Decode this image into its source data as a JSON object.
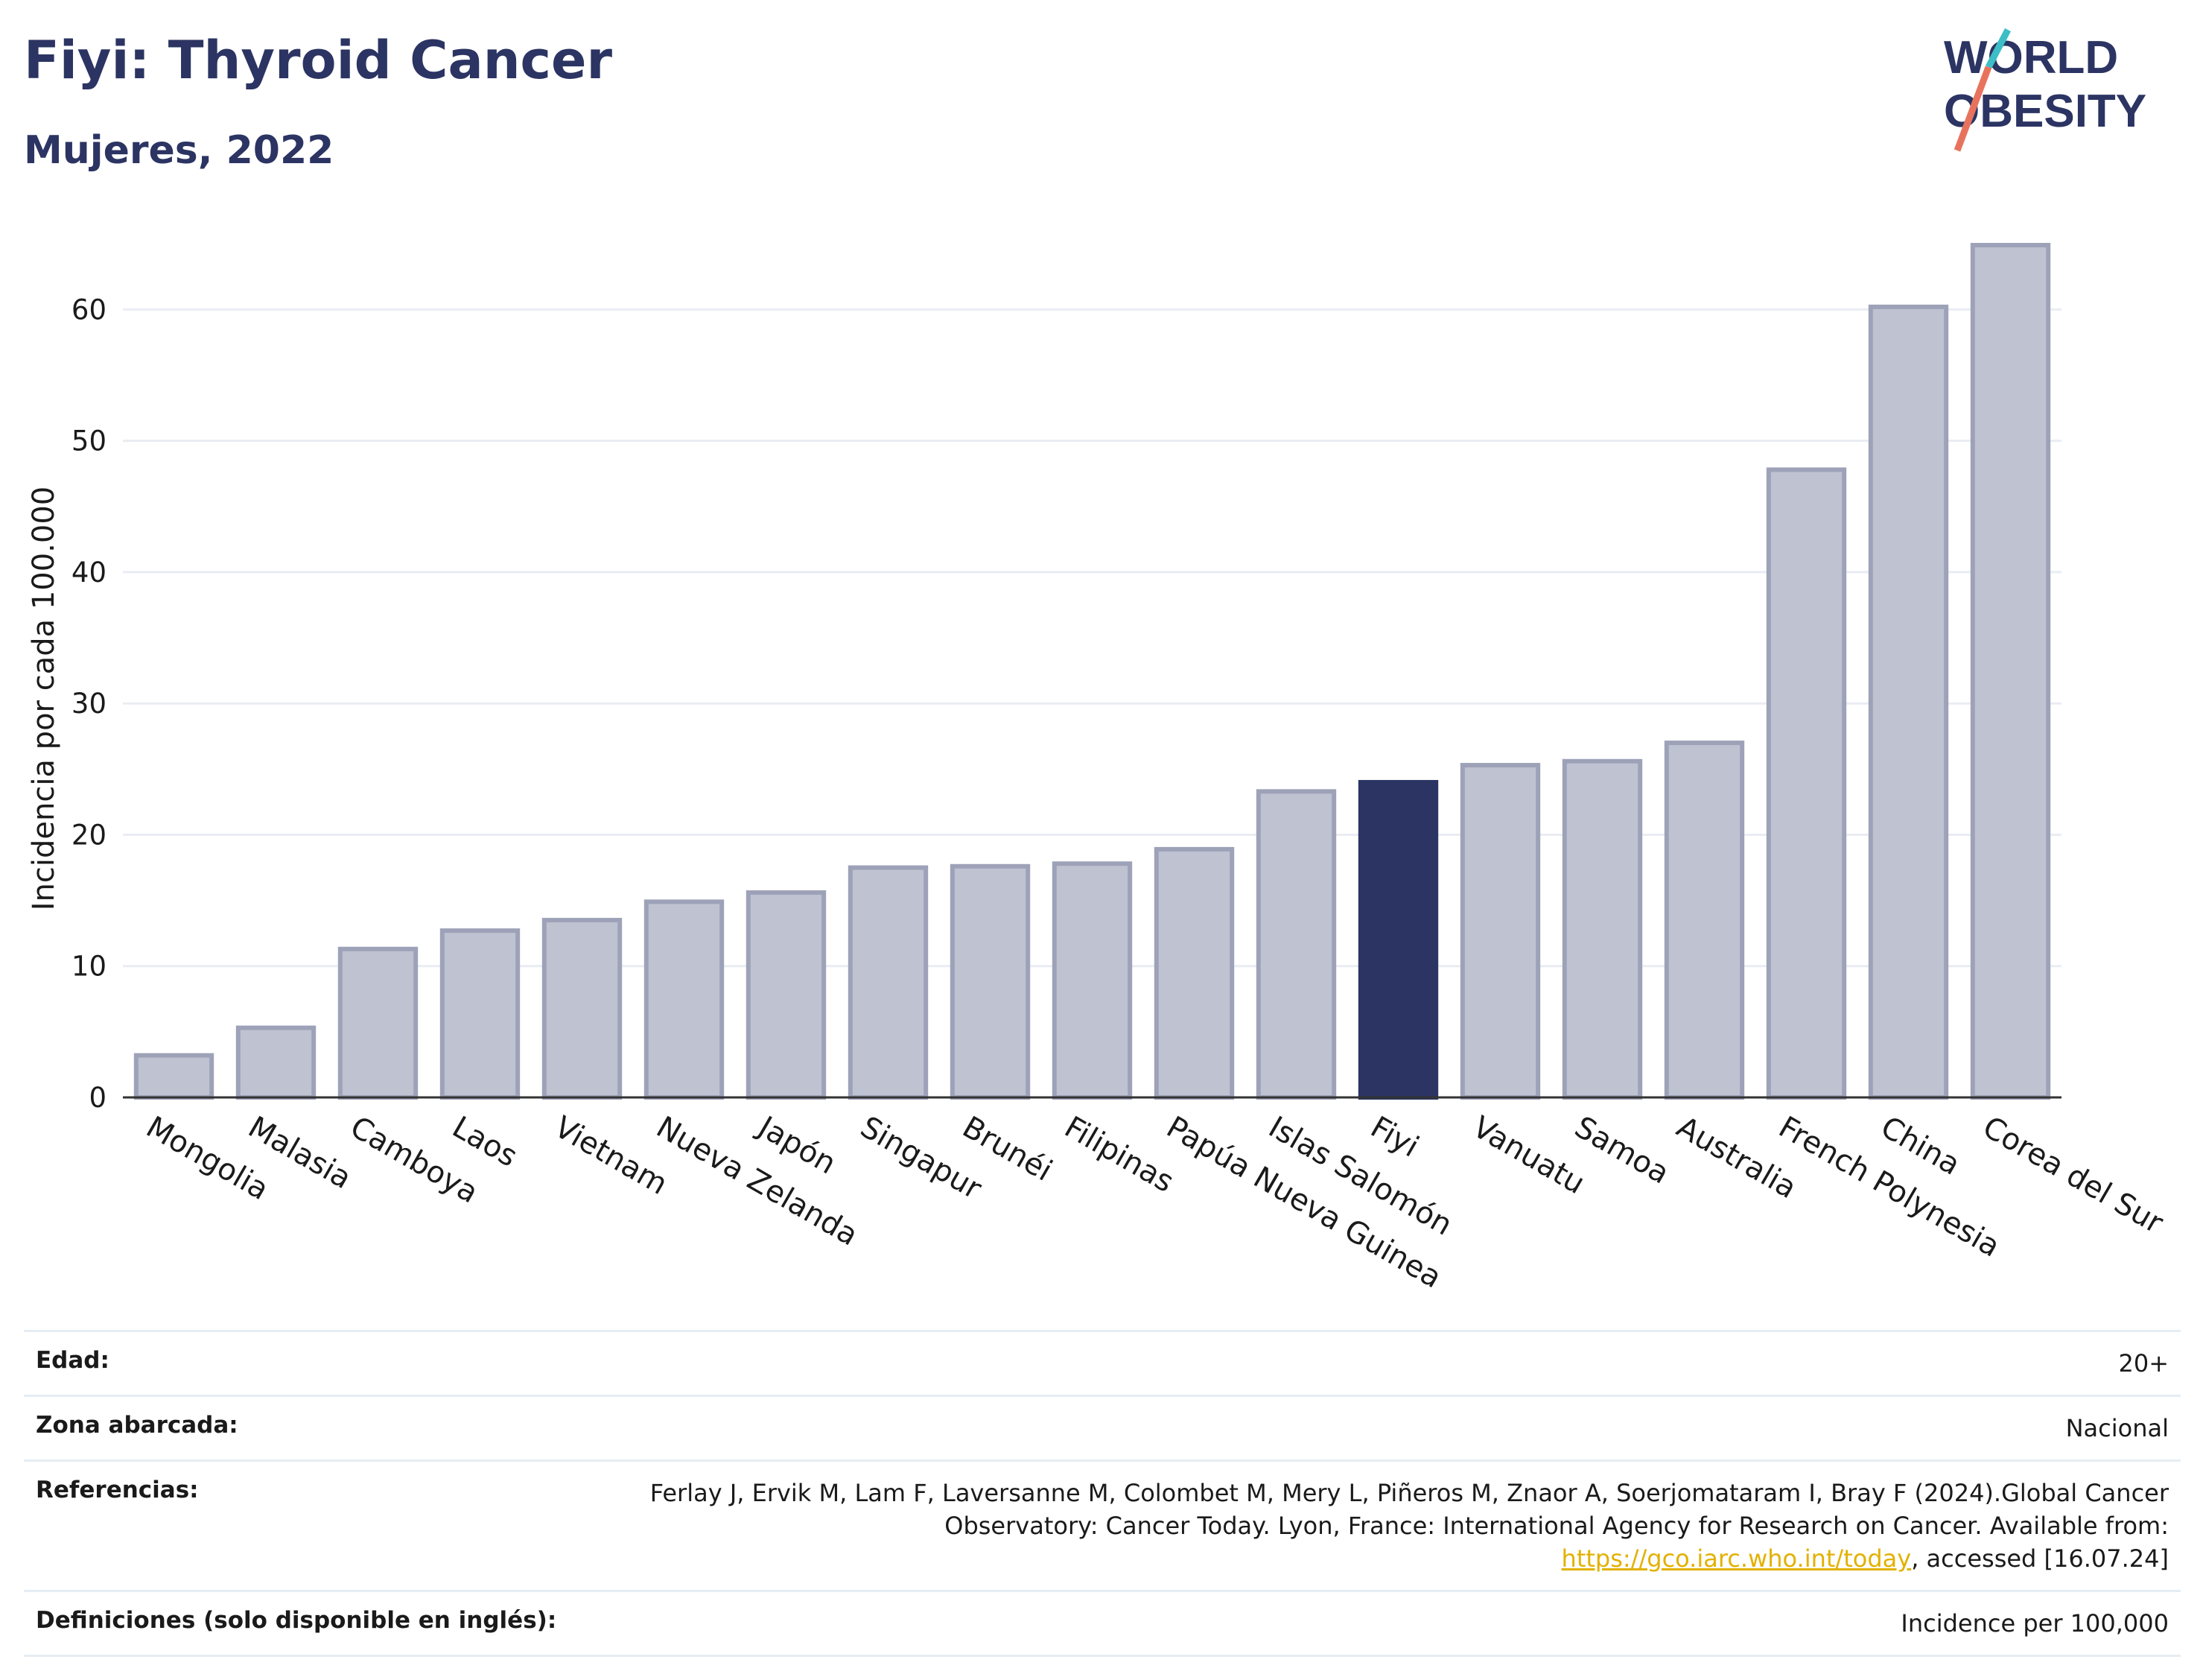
{
  "header": {
    "title": "Fiyi: Thyroid Cancer",
    "subtitle": "Mujeres, 2022"
  },
  "logo": {
    "line1": "WORLD",
    "line2": "OBESITY"
  },
  "colors": {
    "highlight": "#2b3462",
    "bar_fill": "#bfc2d1",
    "bar_stroke": "#9ea2b8",
    "grid": "#e9edf3",
    "logo_teal": "#3dbec7",
    "logo_coral": "#e8735d"
  },
  "chart_data": {
    "type": "bar",
    "ylabel": "Incidencia por cada 100.000",
    "xlabel": "",
    "ylim": [
      0,
      67
    ],
    "yticks": [
      0,
      10,
      20,
      30,
      40,
      50,
      60
    ],
    "grid": true,
    "categories": [
      "Mongolia",
      "Malasia",
      "Camboya",
      "Laos",
      "Vietnam",
      "Nueva Zelanda",
      "Japón",
      "Singapur",
      "Brunéi",
      "Filipinas",
      "Papúa Nueva Guinea",
      "Islas Salomón",
      "Fiyi",
      "Vanuatu",
      "Samoa",
      "Australia",
      "French Polynesia",
      "China",
      "Corea del Sur"
    ],
    "values": [
      3.2,
      5.3,
      11.3,
      12.7,
      13.5,
      14.9,
      15.6,
      17.5,
      17.6,
      17.8,
      18.9,
      23.3,
      24.0,
      25.3,
      25.6,
      27.0,
      47.8,
      60.2,
      64.9
    ],
    "highlight": "Fiyi"
  },
  "info": {
    "edad_label": "Edad:",
    "edad_value": "20+",
    "zona_label": "Zona abarcada:",
    "zona_value": "Nacional",
    "ref_label": "Referencias:",
    "ref_text": "Ferlay J, Ervik M, Lam F, Laversanne M, Colombet M, Mery L, Piñeros M, Znaor A, Soerjomataram I, Bray F (2024).Global Cancer Observatory: Cancer Today. Lyon, France: International Agency for Research on Cancer. Available from: ",
    "ref_link": "https://gco.iarc.who.int/today",
    "ref_tail": ", accessed [16.07.24]",
    "def_label": "Definiciones (solo disponible en inglés):",
    "def_value": "Incidence per 100,000"
  }
}
